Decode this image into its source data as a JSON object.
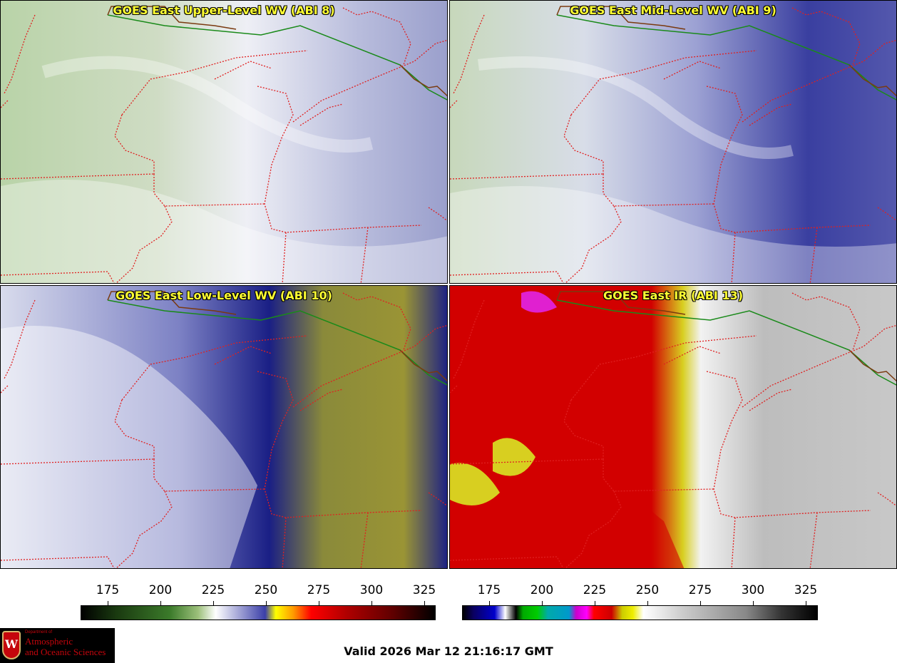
{
  "panels": [
    {
      "title": "GOES East Upper-Level WV (ABI 8)"
    },
    {
      "title": "GOES East Mid-Level WV (ABI 9)"
    },
    {
      "title": "GOES East Low-Level WV (ABI 10)"
    },
    {
      "title": "GOES East IR (ABI 13)"
    }
  ],
  "colorbars": [
    {
      "name": "water-vapor",
      "ticks": [
        "175",
        "200",
        "225",
        "250",
        "275",
        "300",
        "325"
      ]
    },
    {
      "name": "infrared",
      "ticks": [
        "175",
        "200",
        "225",
        "250",
        "275",
        "300",
        "325"
      ]
    }
  ],
  "valid_time": "Valid 2026 Mar 12 21:16:17 GMT",
  "logo": {
    "line0": "Department of",
    "line1": "Atmospheric",
    "line2": "and Oceanic Sciences",
    "crest_letter": "W"
  },
  "colors": {
    "boundary": "#e02020",
    "international_border": "#1a8a1a",
    "coastline": "#7a3a10",
    "title_text": "#ffff33"
  }
}
